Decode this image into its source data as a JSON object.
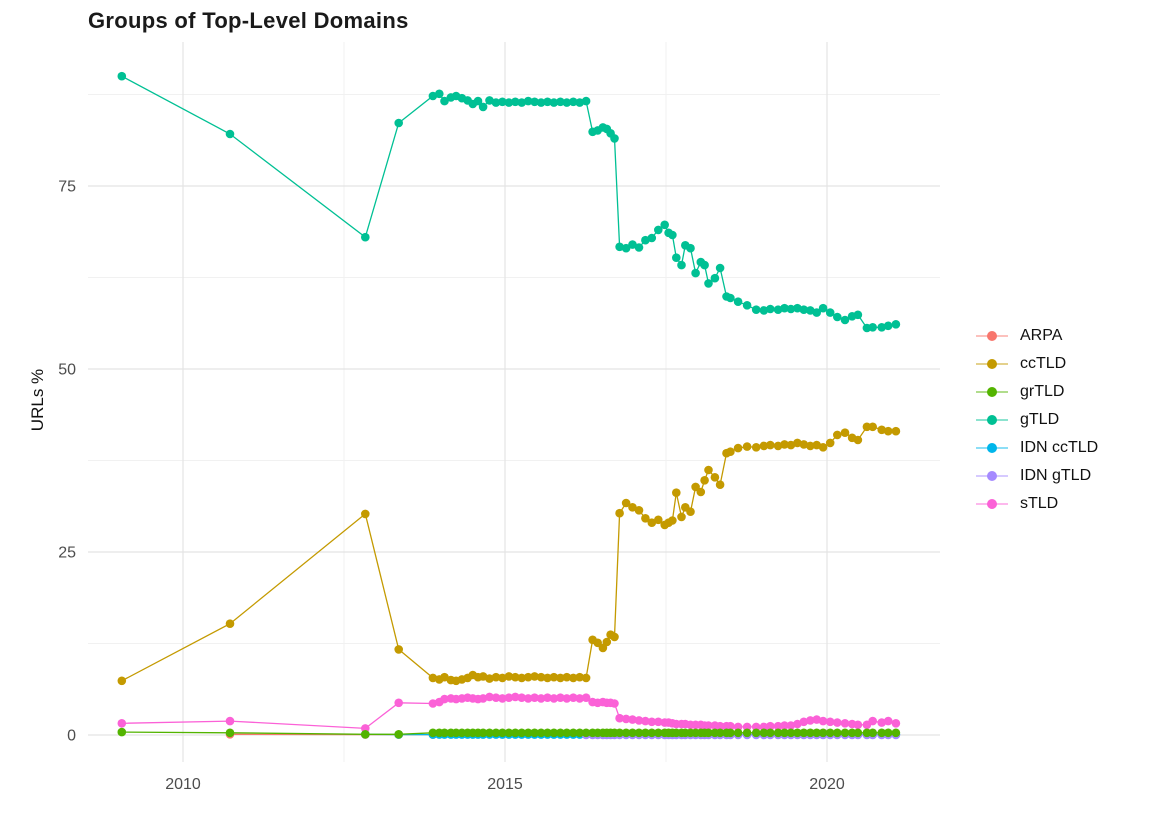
{
  "chart_data": {
    "type": "line",
    "title": "Groups of Top-Level Domains",
    "xlabel": "",
    "ylabel": "URLs %",
    "legend_position": "right",
    "grid": true,
    "x_axis": {
      "ticks": [
        2010,
        2015,
        2020
      ],
      "minor_ticks": [
        2012.5,
        2017.5
      ],
      "range": [
        2008.5,
        2021.75
      ]
    },
    "y_axis": {
      "ticks": [
        0,
        25,
        50,
        75
      ],
      "minor_ticks": [
        12.5,
        37.5,
        62.5,
        87.5
      ],
      "range": [
        -3.7,
        94.7
      ]
    },
    "colors": {
      "grid_major": "#e4e4e4",
      "grid_minor": "#f1f1f1",
      "tick_label": "#4d4d4d",
      "title_text": "#1a1a1a"
    },
    "dense_x": [
      2013.88,
      2013.98,
      2014.06,
      2014.16,
      2014.24,
      2014.33,
      2014.42,
      2014.5,
      2014.58,
      2014.66,
      2014.76,
      2014.86,
      2014.96,
      2015.06,
      2015.16,
      2015.26,
      2015.36,
      2015.46,
      2015.56,
      2015.66,
      2015.76,
      2015.86,
      2015.96,
      2016.06,
      2016.16,
      2016.26,
      2016.36,
      2016.44,
      2016.52,
      2016.58,
      2016.64,
      2016.7,
      2016.78,
      2016.88,
      2016.98,
      2017.08,
      2017.18,
      2017.28,
      2017.38,
      2017.48,
      2017.54,
      2017.6,
      2017.66,
      2017.74,
      2017.8,
      2017.88,
      2017.96,
      2018.04,
      2018.1,
      2018.16,
      2018.26,
      2018.34,
      2018.44,
      2018.5,
      2018.62,
      2018.76,
      2018.9,
      2019.02,
      2019.12,
      2019.24,
      2019.34,
      2019.44,
      2019.54,
      2019.64,
      2019.74,
      2019.84,
      2019.94,
      2020.05,
      2020.16,
      2020.28,
      2020.39,
      2020.48,
      2020.62,
      2020.71,
      2020.85,
      2020.95,
      2021.07
    ],
    "series": [
      {
        "name": "ARPA",
        "color": "#F8766D",
        "points": [
          [
            2010.73,
            0.1
          ],
          [
            2012.83,
            0.05
          ],
          [
            2013.35,
            0.05
          ],
          [
            2013.88,
            0.05
          ]
        ]
      },
      {
        "name": "ccTLD",
        "color": "#C49A00",
        "points": [
          [
            2009.05,
            7.4
          ],
          [
            2010.73,
            15.2
          ],
          [
            2012.83,
            30.2
          ],
          [
            2013.35,
            11.7
          ]
        ],
        "dense_values": [
          7.8,
          7.6,
          7.9,
          7.5,
          7.4,
          7.6,
          7.8,
          8.2,
          7.9,
          8.0,
          7.7,
          7.9,
          7.8,
          8.0,
          7.9,
          7.8,
          7.9,
          8.0,
          7.9,
          7.8,
          7.9,
          7.8,
          7.9,
          7.8,
          7.9,
          7.8,
          13.0,
          12.6,
          11.9,
          12.7,
          13.7,
          13.4,
          30.3,
          31.7,
          31.1,
          30.7,
          29.6,
          29.0,
          29.4,
          28.7,
          29.0,
          29.3,
          33.1,
          29.8,
          31.1,
          30.5,
          33.9,
          33.2,
          34.8,
          36.2,
          35.2,
          34.2,
          38.5,
          38.7,
          39.2,
          39.4,
          39.3,
          39.5,
          39.6,
          39.5,
          39.7,
          39.6,
          39.9,
          39.7,
          39.5,
          39.6,
          39.3,
          39.9,
          41.0,
          41.3,
          40.6,
          40.3,
          42.1,
          42.1,
          41.7,
          41.5,
          41.5
        ]
      },
      {
        "name": "grTLD",
        "color": "#53B400",
        "points": [
          [
            2009.05,
            0.4
          ],
          [
            2010.73,
            0.3
          ],
          [
            2012.83,
            0.1
          ],
          [
            2013.35,
            0.1
          ]
        ],
        "dense_const": 0.3
      },
      {
        "name": "gTLD",
        "color": "#00C094",
        "points": [
          [
            2009.05,
            90.0
          ],
          [
            2010.73,
            82.1
          ],
          [
            2012.83,
            68.0
          ],
          [
            2013.35,
            83.6
          ]
        ],
        "dense_values": [
          87.3,
          87.6,
          86.6,
          87.1,
          87.3,
          87.0,
          86.7,
          86.2,
          86.6,
          85.8,
          86.7,
          86.4,
          86.5,
          86.4,
          86.5,
          86.4,
          86.6,
          86.5,
          86.4,
          86.5,
          86.4,
          86.5,
          86.4,
          86.5,
          86.4,
          86.6,
          82.4,
          82.6,
          83.0,
          82.8,
          82.2,
          81.5,
          66.7,
          66.5,
          67.0,
          66.6,
          67.6,
          67.9,
          69.0,
          69.7,
          68.6,
          68.3,
          65.2,
          64.2,
          66.9,
          66.5,
          63.1,
          64.6,
          64.2,
          61.7,
          62.4,
          63.8,
          59.9,
          59.7,
          59.2,
          58.7,
          58.1,
          58.0,
          58.2,
          58.1,
          58.3,
          58.2,
          58.3,
          58.1,
          58.0,
          57.7,
          58.3,
          57.7,
          57.1,
          56.7,
          57.2,
          57.4,
          55.6,
          55.7,
          55.7,
          55.9,
          56.1
        ]
      },
      {
        "name": "IDN ccTLD",
        "color": "#00B6EB",
        "points": [
          [
            2012.83,
            0.1
          ],
          [
            2013.35,
            0.05
          ]
        ],
        "dense_const": 0.05
      },
      {
        "name": "IDN gTLD",
        "color": "#A58AFF",
        "points": [],
        "dense_const": 0.0,
        "dense_from": 2016.26
      },
      {
        "name": "sTLD",
        "color": "#FB61D7",
        "points": [
          [
            2009.05,
            1.6
          ],
          [
            2010.73,
            1.9
          ],
          [
            2012.83,
            0.9
          ],
          [
            2013.35,
            4.4
          ]
        ],
        "dense_values": [
          4.3,
          4.5,
          4.9,
          5.0,
          4.9,
          5.0,
          5.1,
          5.0,
          4.9,
          5.0,
          5.2,
          5.1,
          5.0,
          5.1,
          5.2,
          5.1,
          5.0,
          5.1,
          5.0,
          5.1,
          5.0,
          5.1,
          5.0,
          5.1,
          5.0,
          5.1,
          4.5,
          4.4,
          4.5,
          4.4,
          4.4,
          4.3,
          2.3,
          2.2,
          2.1,
          2.0,
          1.9,
          1.8,
          1.8,
          1.7,
          1.7,
          1.6,
          1.5,
          1.5,
          1.5,
          1.4,
          1.4,
          1.4,
          1.3,
          1.3,
          1.3,
          1.2,
          1.2,
          1.2,
          1.1,
          1.1,
          1.1,
          1.1,
          1.2,
          1.2,
          1.3,
          1.3,
          1.5,
          1.8,
          2.0,
          2.1,
          1.9,
          1.8,
          1.7,
          1.6,
          1.5,
          1.4,
          1.4,
          1.9,
          1.7,
          1.9,
          1.6
        ]
      }
    ],
    "draw_order": [
      0,
      4,
      5,
      1,
      3,
      6,
      2
    ]
  }
}
